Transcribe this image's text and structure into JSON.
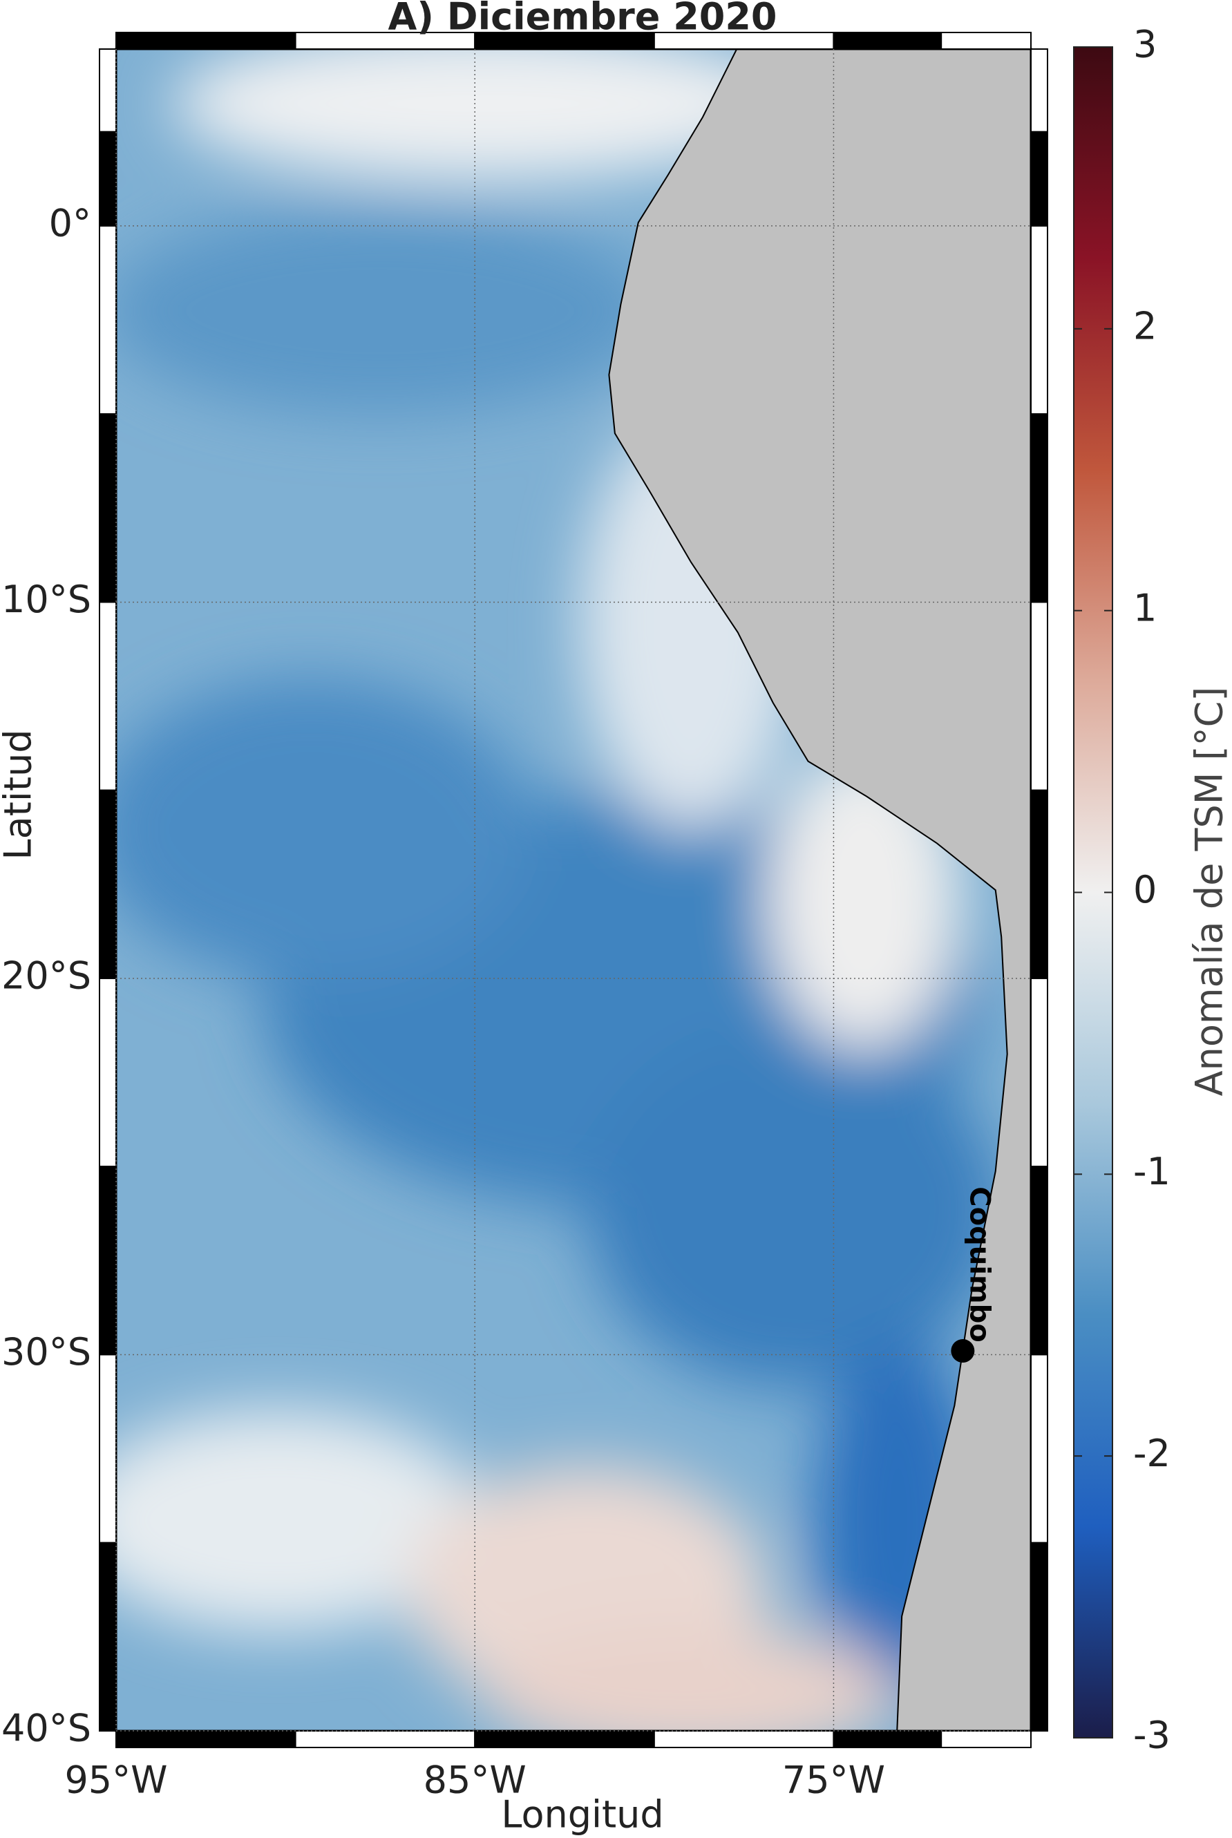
{
  "chart_data": {
    "type": "map",
    "title": "A) Diciembre 2020",
    "xlabel": "Longitud",
    "ylabel": "Latitud",
    "xlim": [
      -95,
      -69.5
    ],
    "ylim": [
      -40,
      4.7
    ],
    "xticks": [
      {
        "value": -95,
        "label": "95°W"
      },
      {
        "value": -85,
        "label": "85°W"
      },
      {
        "value": -75,
        "label": "75°W"
      }
    ],
    "yticks": [
      {
        "value": 0,
        "label": "0°"
      },
      {
        "value": -10,
        "label": "10°S"
      },
      {
        "value": -20,
        "label": "20°S"
      },
      {
        "value": -30,
        "label": "30°S"
      },
      {
        "value": -40,
        "label": "40°S"
      }
    ],
    "grid": true,
    "colorbar": {
      "label": "Anomalía de TSM [°C]",
      "lim": [
        -3,
        3
      ],
      "ticks": [
        -3,
        -2,
        -1,
        0,
        1,
        2,
        3
      ],
      "colormap": [
        "#1b1d4a",
        "#1f5fbf",
        "#4a8ec3",
        "#a9c8dc",
        "#f0f0f0",
        "#ddaa9a",
        "#c0573c",
        "#8a1326",
        "#3d0a12"
      ]
    },
    "annotations": [
      {
        "text": "Coquimbo",
        "lon": -71.4,
        "lat": -29.9
      }
    ]
  }
}
